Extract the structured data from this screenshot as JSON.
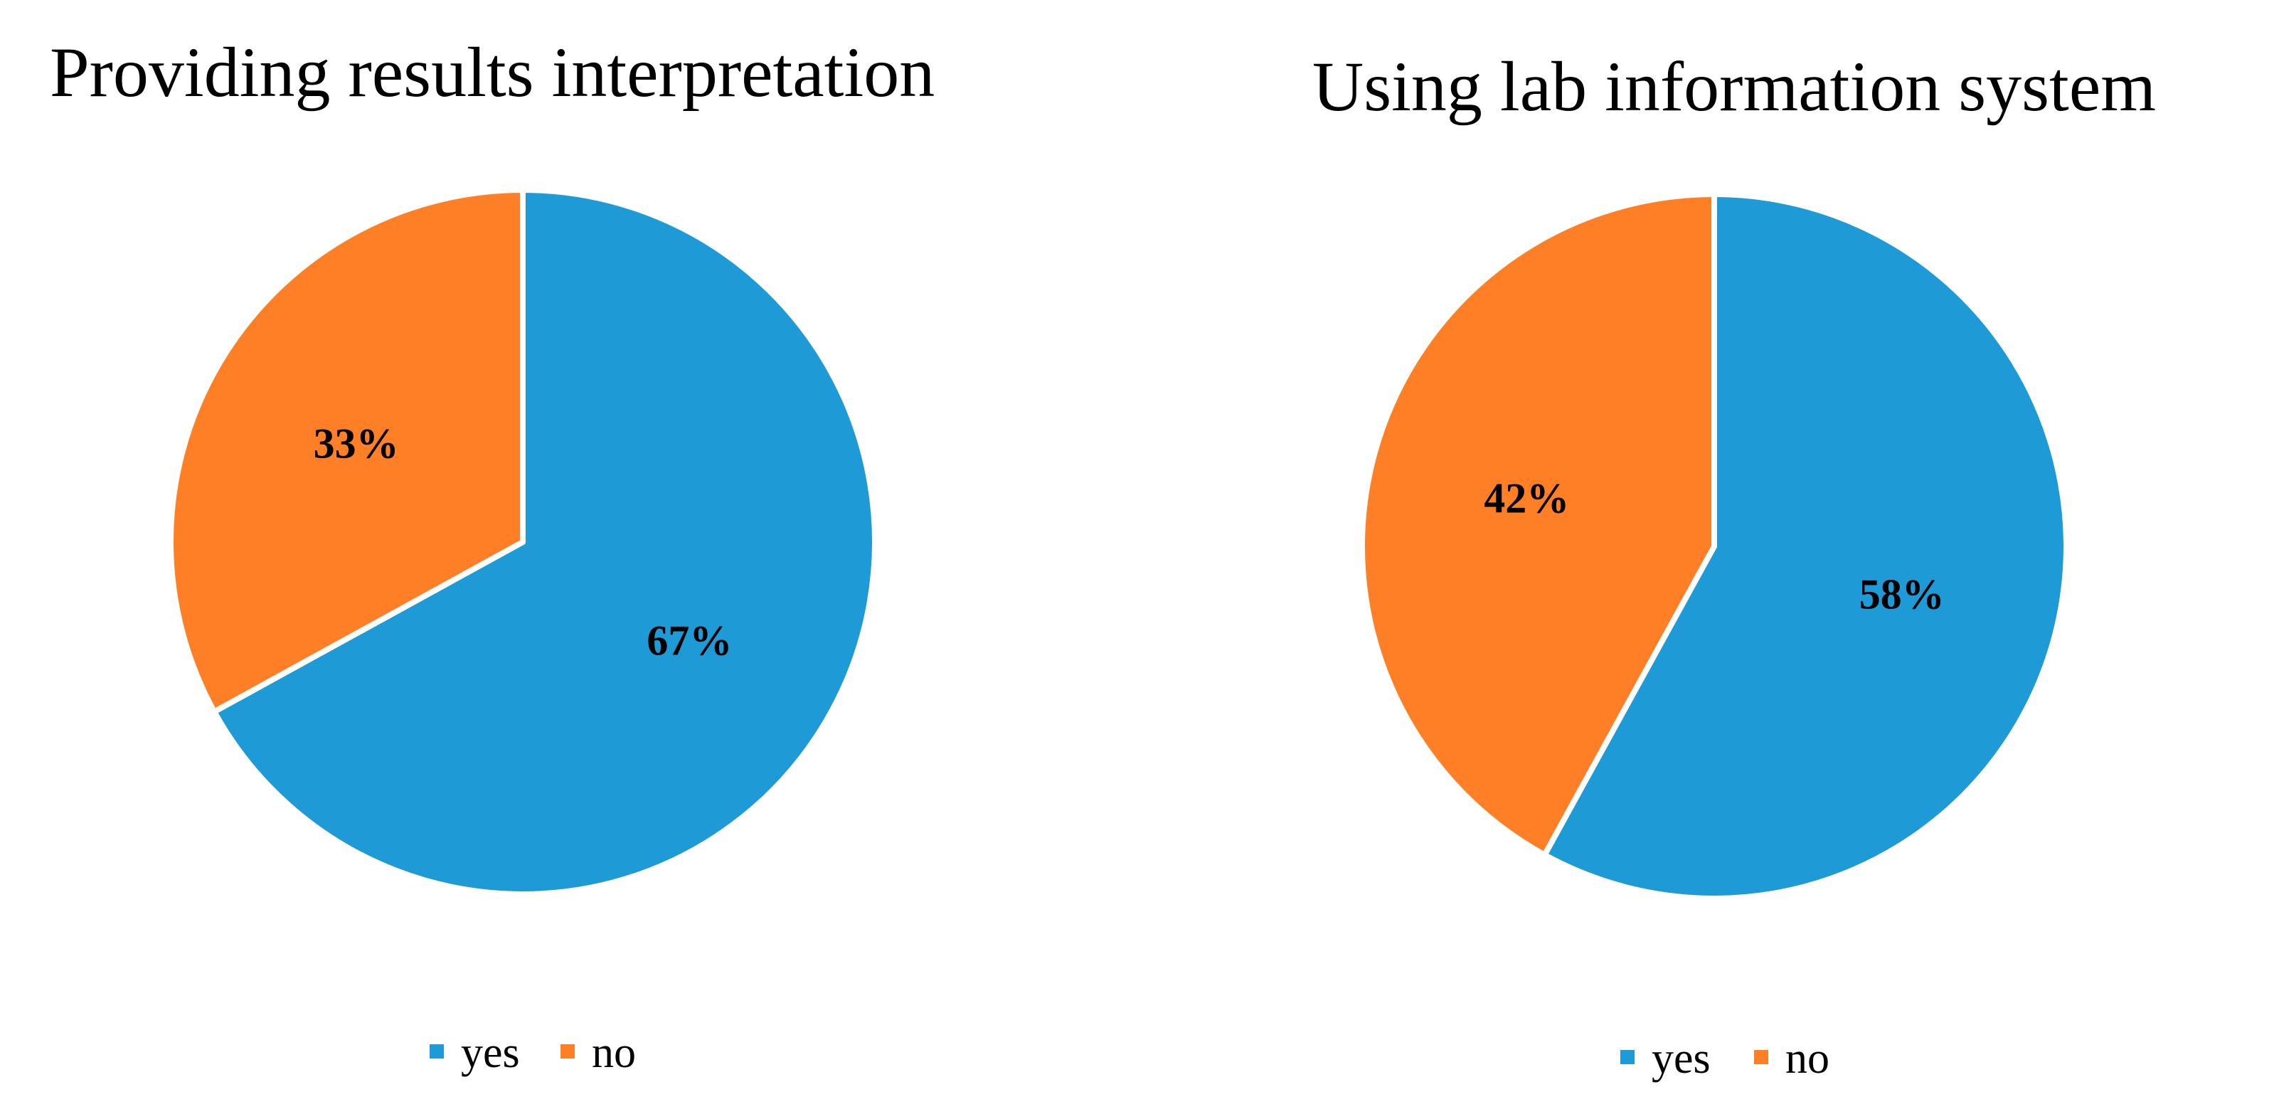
{
  "chart_data": [
    {
      "type": "pie",
      "title": "Providing results interpretation",
      "slices": [
        {
          "label": "yes",
          "value": 67,
          "display": "67%",
          "color": "#1E9BD7"
        },
        {
          "label": "no",
          "value": 33,
          "display": "33%",
          "color": "#FF7F27"
        }
      ],
      "legend": {
        "position": "bottom",
        "entries": [
          "yes",
          "no"
        ]
      }
    },
    {
      "type": "pie",
      "title": "Using lab information system",
      "slices": [
        {
          "label": "yes",
          "value": 58,
          "display": "58%",
          "color": "#1E9BD7"
        },
        {
          "label": "no",
          "value": 42,
          "display": "42%",
          "color": "#FF7F27"
        }
      ],
      "legend": {
        "position": "bottom",
        "entries": [
          "yes",
          "no"
        ]
      }
    }
  ]
}
